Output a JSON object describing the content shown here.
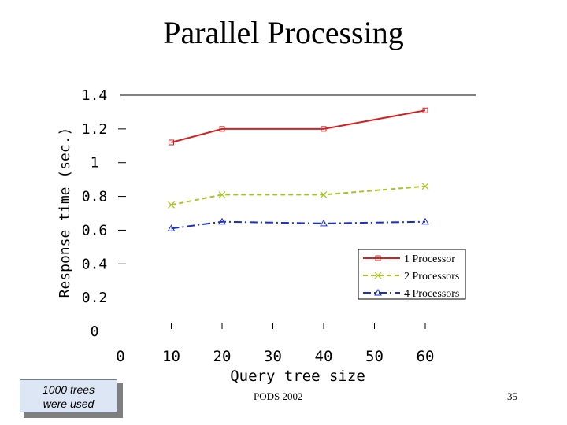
{
  "slide": {
    "title": "Parallel Processing",
    "note_line1": "1000 trees",
    "note_line2": "were used",
    "footer_center": "PODS 2002",
    "page_number": "35"
  },
  "chart_data": {
    "type": "line",
    "title": "",
    "xlabel": "Query tree size",
    "ylabel": "Response time (sec.)",
    "x_ticks": [
      "0",
      "10",
      "20",
      "30",
      "40",
      "50",
      "60"
    ],
    "y_ticks": [
      "0",
      "0.2",
      "0.4",
      "0.6",
      "0.8",
      "1",
      "1.2",
      "1.4"
    ],
    "xlim": [
      0,
      60
    ],
    "ylim": [
      0,
      1.4
    ],
    "grid": false,
    "legend_position": "bottom-right",
    "series": [
      {
        "name": "1 Processor",
        "color": "#d62020",
        "dash": "solid",
        "marker": "square",
        "x": [
          10,
          20,
          40,
          60
        ],
        "values": [
          1.12,
          1.2,
          1.2,
          1.31
        ]
      },
      {
        "name": "2 Processors",
        "color": "#a8c41e",
        "dash": "dashed",
        "marker": "x",
        "x": [
          10,
          20,
          40,
          60
        ],
        "values": [
          0.75,
          0.81,
          0.81,
          0.86
        ]
      },
      {
        "name": "4 Processors",
        "color": "#1a2ecc",
        "dash": "dashdot",
        "marker": "triangle",
        "x": [
          10,
          20,
          40,
          60
        ],
        "values": [
          0.61,
          0.65,
          0.64,
          0.65
        ]
      }
    ]
  }
}
